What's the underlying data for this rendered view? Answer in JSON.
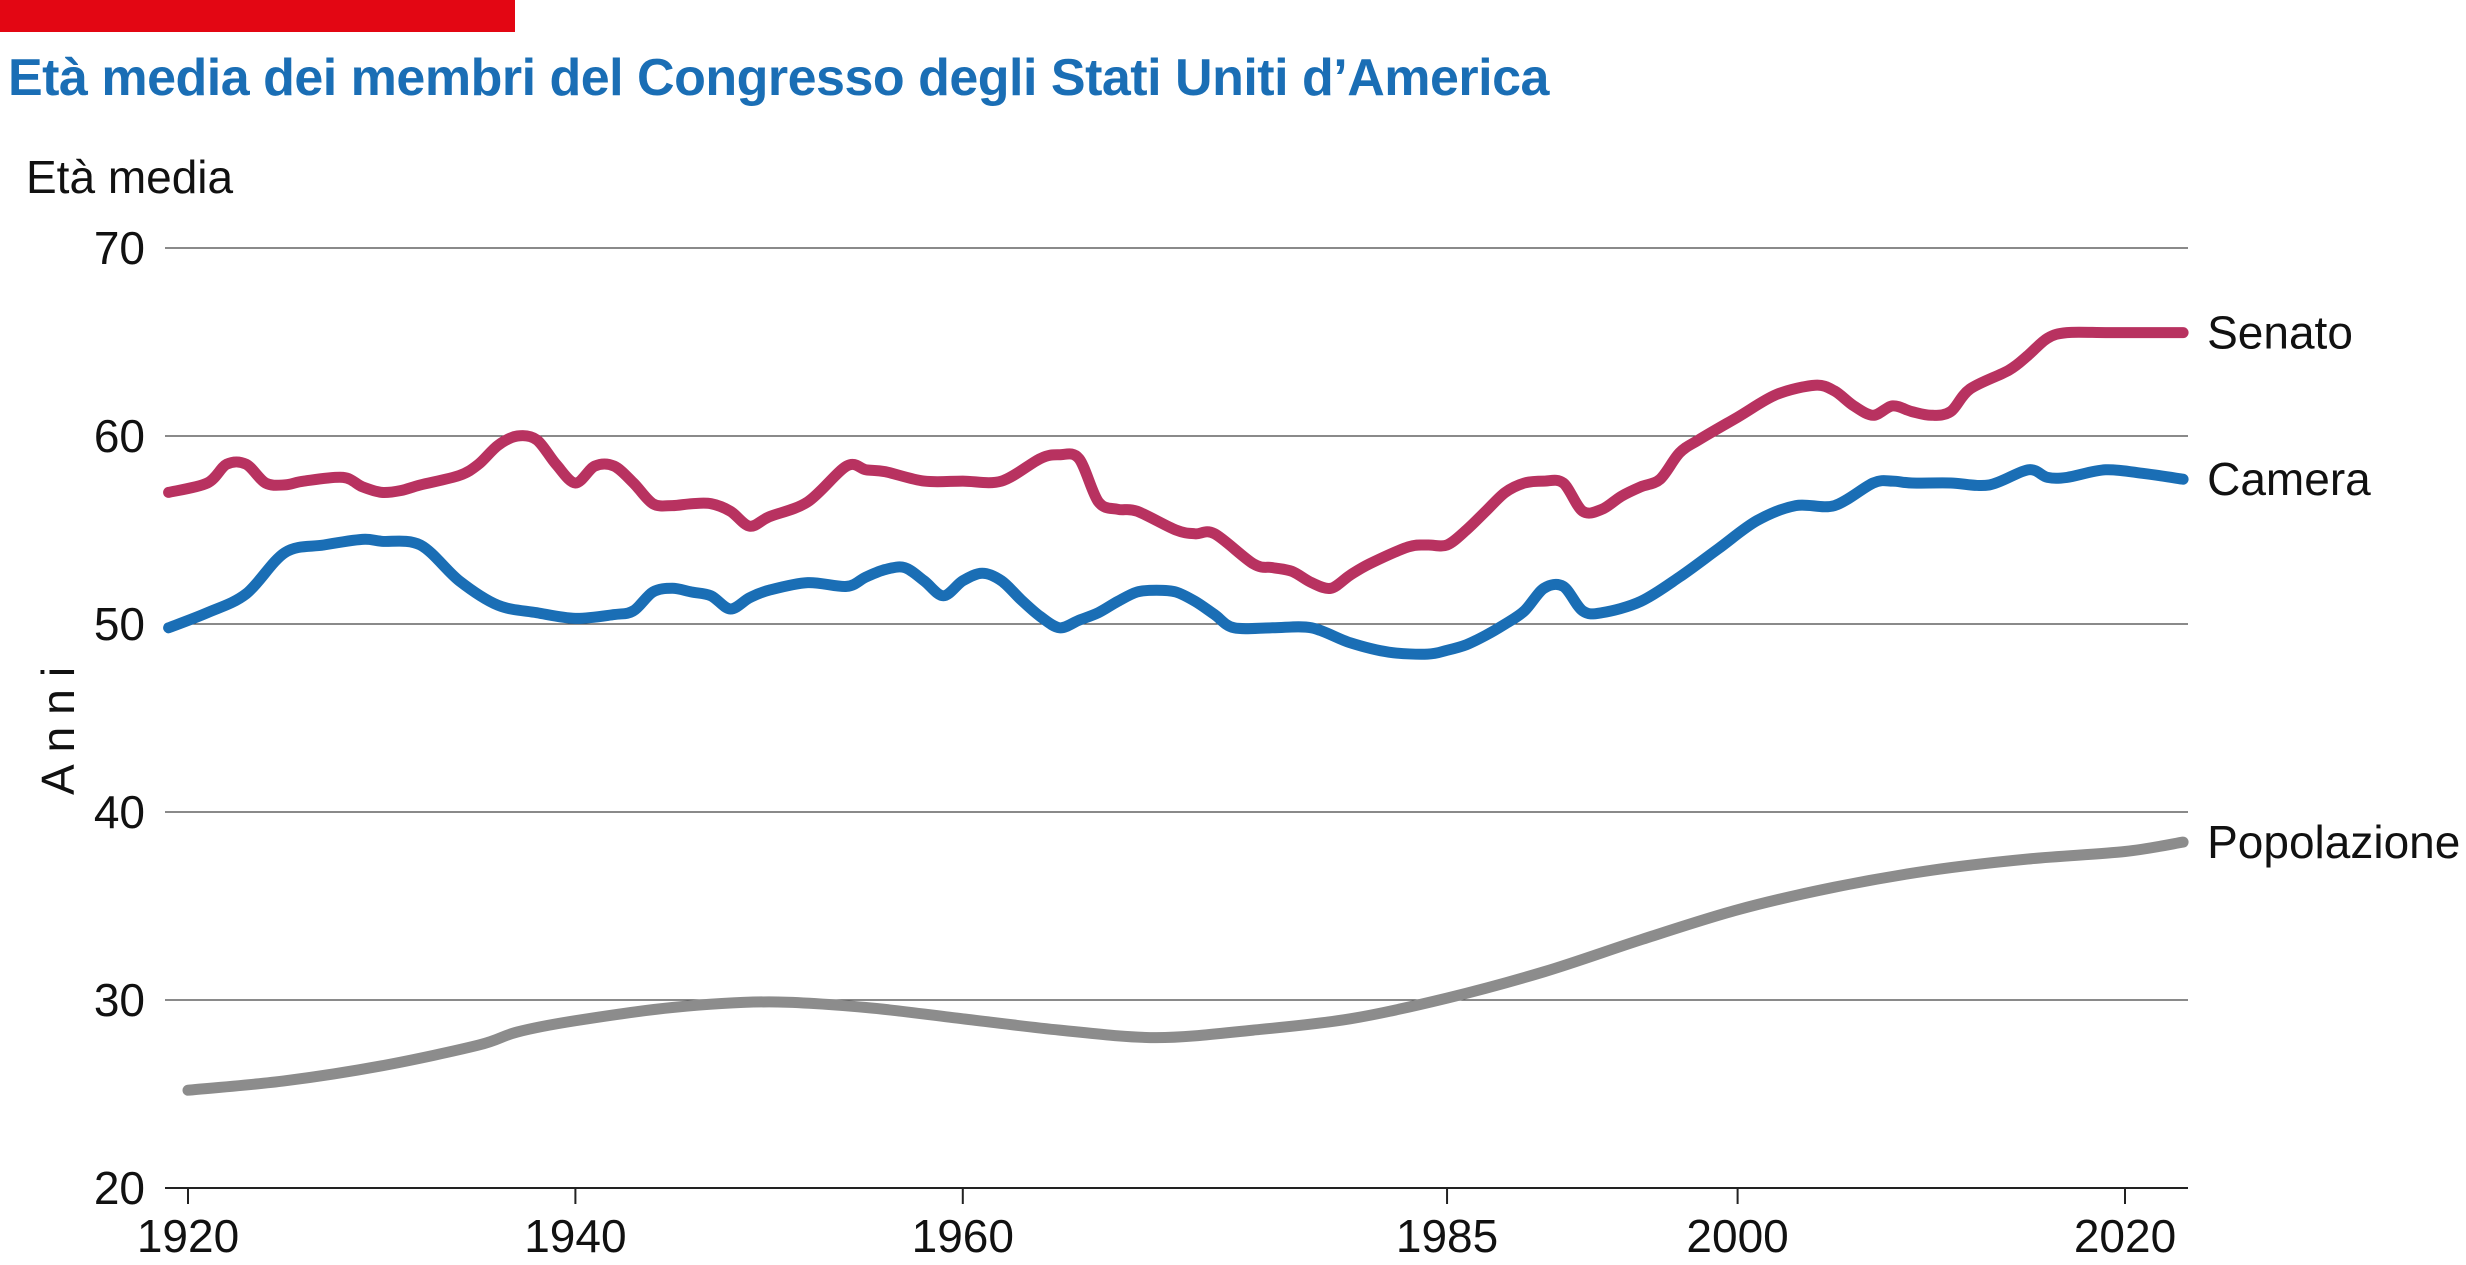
{
  "header": {
    "title": "Età media dei membri del Congresso degli Stati Uniti d’America"
  },
  "colors": {
    "accent_bar": "#e30613",
    "title": "#1a6eb5",
    "senato": "#b83260",
    "camera": "#1a6eb5",
    "popolazione": "#8c8c8c",
    "grid": "#444444"
  },
  "chart_data": {
    "type": "line",
    "ylabel_top": "Età media",
    "ylabel": "Anni",
    "xlabel": "",
    "ylim": [
      20,
      70
    ],
    "xlim": [
      1919,
      2023.5
    ],
    "xticks": [
      1920,
      1940,
      1960,
      1985,
      2000,
      2020
    ],
    "xtick_labels": [
      "1920",
      "1940",
      "1960",
      "1985",
      "2000",
      "2020"
    ],
    "yticks": [
      20,
      30,
      40,
      50,
      60,
      70
    ],
    "ytick_labels": [
      "20",
      "30",
      "40",
      "50",
      "60",
      "70"
    ],
    "grid": "horizontal",
    "series": [
      {
        "name": "Senato",
        "color": "#b83260",
        "x": [
          1919,
          1921,
          1922,
          1923,
          1924,
          1925,
          1926,
          1928,
          1929,
          1930,
          1931,
          1932,
          1934,
          1935,
          1936,
          1937,
          1938,
          1939,
          1940,
          1941,
          1942,
          1943,
          1944,
          1945,
          1946,
          1947,
          1948,
          1949,
          1950,
          1952,
          1954,
          1955,
          1956,
          1958,
          1960,
          1962,
          1964,
          1965,
          1966,
          1967,
          1968,
          1969,
          1971,
          1972,
          1973,
          1975,
          1976,
          1977,
          1978,
          1979,
          1980,
          1981,
          1983,
          1984,
          1985,
          1986,
          1987,
          1988,
          1989,
          1990,
          1991,
          1992,
          1993,
          1994,
          1995,
          1996,
          1997,
          1998,
          2000,
          2002,
          2004,
          2005,
          2006,
          2007,
          2008,
          2009,
          2010,
          2011,
          2012,
          2014,
          2015,
          2016,
          2017,
          2019,
          2021,
          2022,
          2023
        ],
        "values": [
          57,
          57.5,
          58.5,
          58.5,
          57.5,
          57.4,
          57.6,
          57.8,
          57.3,
          57,
          57.1,
          57.4,
          57.9,
          58.5,
          59.5,
          60,
          59.8,
          58.5,
          57.5,
          58.4,
          58.4,
          57.5,
          56.4,
          56.3,
          56.4,
          56.4,
          56,
          55.2,
          55.7,
          56.5,
          58.4,
          58.2,
          58.1,
          57.6,
          57.6,
          57.6,
          58.8,
          59,
          58.8,
          56.5,
          56.1,
          56,
          55,
          54.8,
          54.8,
          53.2,
          53,
          52.8,
          52.2,
          51.9,
          52.6,
          53.2,
          54.1,
          54.2,
          54.2,
          55,
          56,
          57,
          57.5,
          57.6,
          57.5,
          56,
          56.1,
          56.8,
          57.3,
          57.7,
          59.1,
          59.8,
          61,
          62.2,
          62.7,
          62.4,
          61.6,
          61.1,
          61.6,
          61.3,
          61.1,
          61.3,
          62.5,
          63.5,
          64.3,
          65.2,
          65.5,
          65.5,
          65.5,
          65.5,
          65.5
        ]
      },
      {
        "name": "Camera",
        "color": "#1a6eb5",
        "x": [
          1919,
          1921,
          1923,
          1925,
          1927,
          1929,
          1930,
          1932,
          1934,
          1936,
          1938,
          1940,
          1942,
          1943,
          1944,
          1945,
          1946,
          1947,
          1948,
          1949,
          1950,
          1952,
          1954,
          1955,
          1956,
          1957,
          1958,
          1959,
          1960,
          1961,
          1962,
          1963,
          1964,
          1965,
          1966,
          1967,
          1968,
          1969,
          1970,
          1971,
          1972,
          1973,
          1974,
          1976,
          1978,
          1980,
          1982,
          1984,
          1985,
          1986,
          1987,
          1988,
          1989,
          1990,
          1991,
          1992,
          1993,
          1995,
          1997,
          1999,
          2001,
          2003,
          2005,
          2007,
          2008,
          2009,
          2011,
          2013,
          2015,
          2016,
          2017,
          2019,
          2021,
          2023
        ],
        "values": [
          49.8,
          50.6,
          51.6,
          53.8,
          54.2,
          54.5,
          54.4,
          54.2,
          52.3,
          51,
          50.6,
          50.3,
          50.5,
          50.7,
          51.7,
          51.9,
          51.7,
          51.5,
          50.8,
          51.4,
          51.8,
          52.2,
          52,
          52.5,
          52.9,
          53,
          52.3,
          51.5,
          52.3,
          52.7,
          52.3,
          51.3,
          50.4,
          49.8,
          50.2,
          50.6,
          51.2,
          51.7,
          51.8,
          51.7,
          51.2,
          50.5,
          49.8,
          49.8,
          49.8,
          49,
          48.5,
          48.4,
          48.6,
          48.9,
          49.4,
          50,
          50.7,
          51.9,
          52,
          50.7,
          50.6,
          51.2,
          52.5,
          54,
          55.5,
          56.3,
          56.3,
          57.5,
          57.6,
          57.5,
          57.5,
          57.4,
          58.2,
          57.8,
          57.8,
          58.2,
          58,
          57.7
        ]
      },
      {
        "name": "Popolazione",
        "color": "#8c8c8c",
        "x": [
          1920,
          1925,
          1930,
          1935,
          1937,
          1940,
          1945,
          1950,
          1955,
          1960,
          1965,
          1970,
          1975,
          1980,
          1985,
          1990,
          1995,
          2000,
          2005,
          2010,
          2015,
          2020,
          2023
        ],
        "values": [
          25.2,
          25.7,
          26.5,
          27.6,
          28.3,
          28.9,
          29.6,
          29.9,
          29.6,
          29,
          28.4,
          28,
          28.4,
          29,
          30.1,
          31.5,
          33.2,
          34.8,
          36,
          36.9,
          37.5,
          37.9,
          38.4
        ]
      }
    ]
  }
}
